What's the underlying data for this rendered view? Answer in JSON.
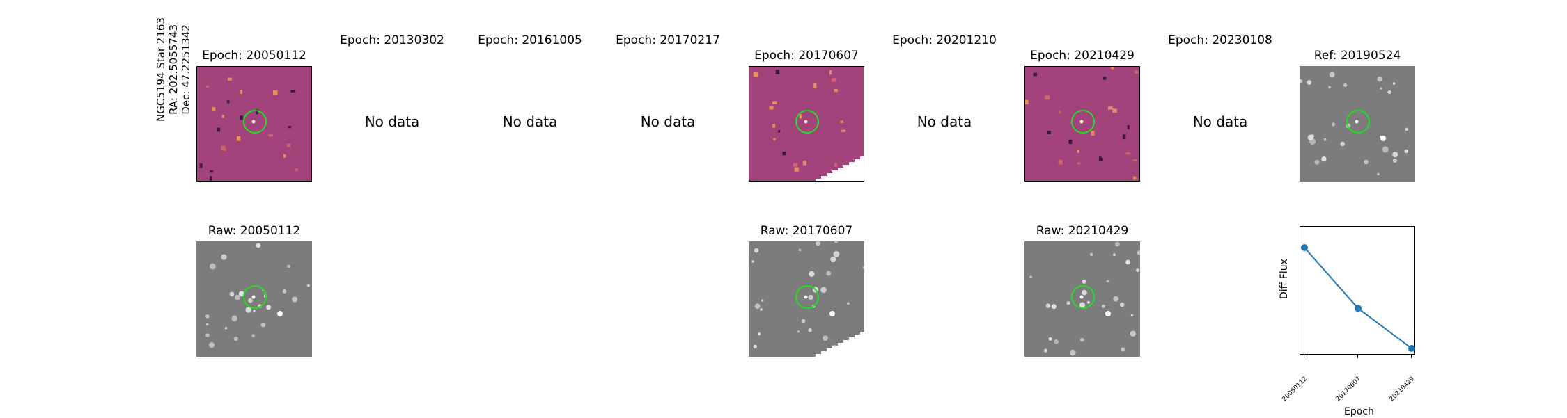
{
  "target": {
    "lines": [
      "NGC5194 Star 2163",
      "RA: 202.5055743",
      "Dec: 47.2251342"
    ]
  },
  "row_diff": [
    {
      "title": "Epoch: 20050112",
      "has_data": true
    },
    {
      "title": "Epoch: 20130302",
      "has_data": false
    },
    {
      "title": "Epoch: 20161005",
      "has_data": false
    },
    {
      "title": "Epoch: 20170217",
      "has_data": false
    },
    {
      "title": "Epoch: 20170607",
      "has_data": true
    },
    {
      "title": "Epoch: 20201210",
      "has_data": false
    },
    {
      "title": "Epoch: 20210429",
      "has_data": true
    },
    {
      "title": "Epoch: 20230108",
      "has_data": false
    },
    {
      "title": "Ref: 20190524",
      "has_data": true
    }
  ],
  "no_data_text": "No data",
  "row_raw": [
    {
      "title": "Raw: 20050112"
    },
    {
      "title": "Raw: 20170607"
    },
    {
      "title": "Raw: 20210429"
    }
  ],
  "colors": {
    "diff_background": "#a3437c",
    "marker_circle": "#22dd22",
    "raw_background": "#7c7c7c",
    "line": "#1f77b4"
  },
  "chart_data": {
    "type": "line",
    "title": "",
    "xlabel": "Epoch",
    "ylabel": "Diff Flux",
    "categories": [
      "20050112",
      "20170607",
      "20210429"
    ],
    "series": [
      {
        "values": [
          1.0,
          0.47,
          0.12
        ]
      }
    ],
    "y_ticks_shown": false,
    "grid": false
  }
}
